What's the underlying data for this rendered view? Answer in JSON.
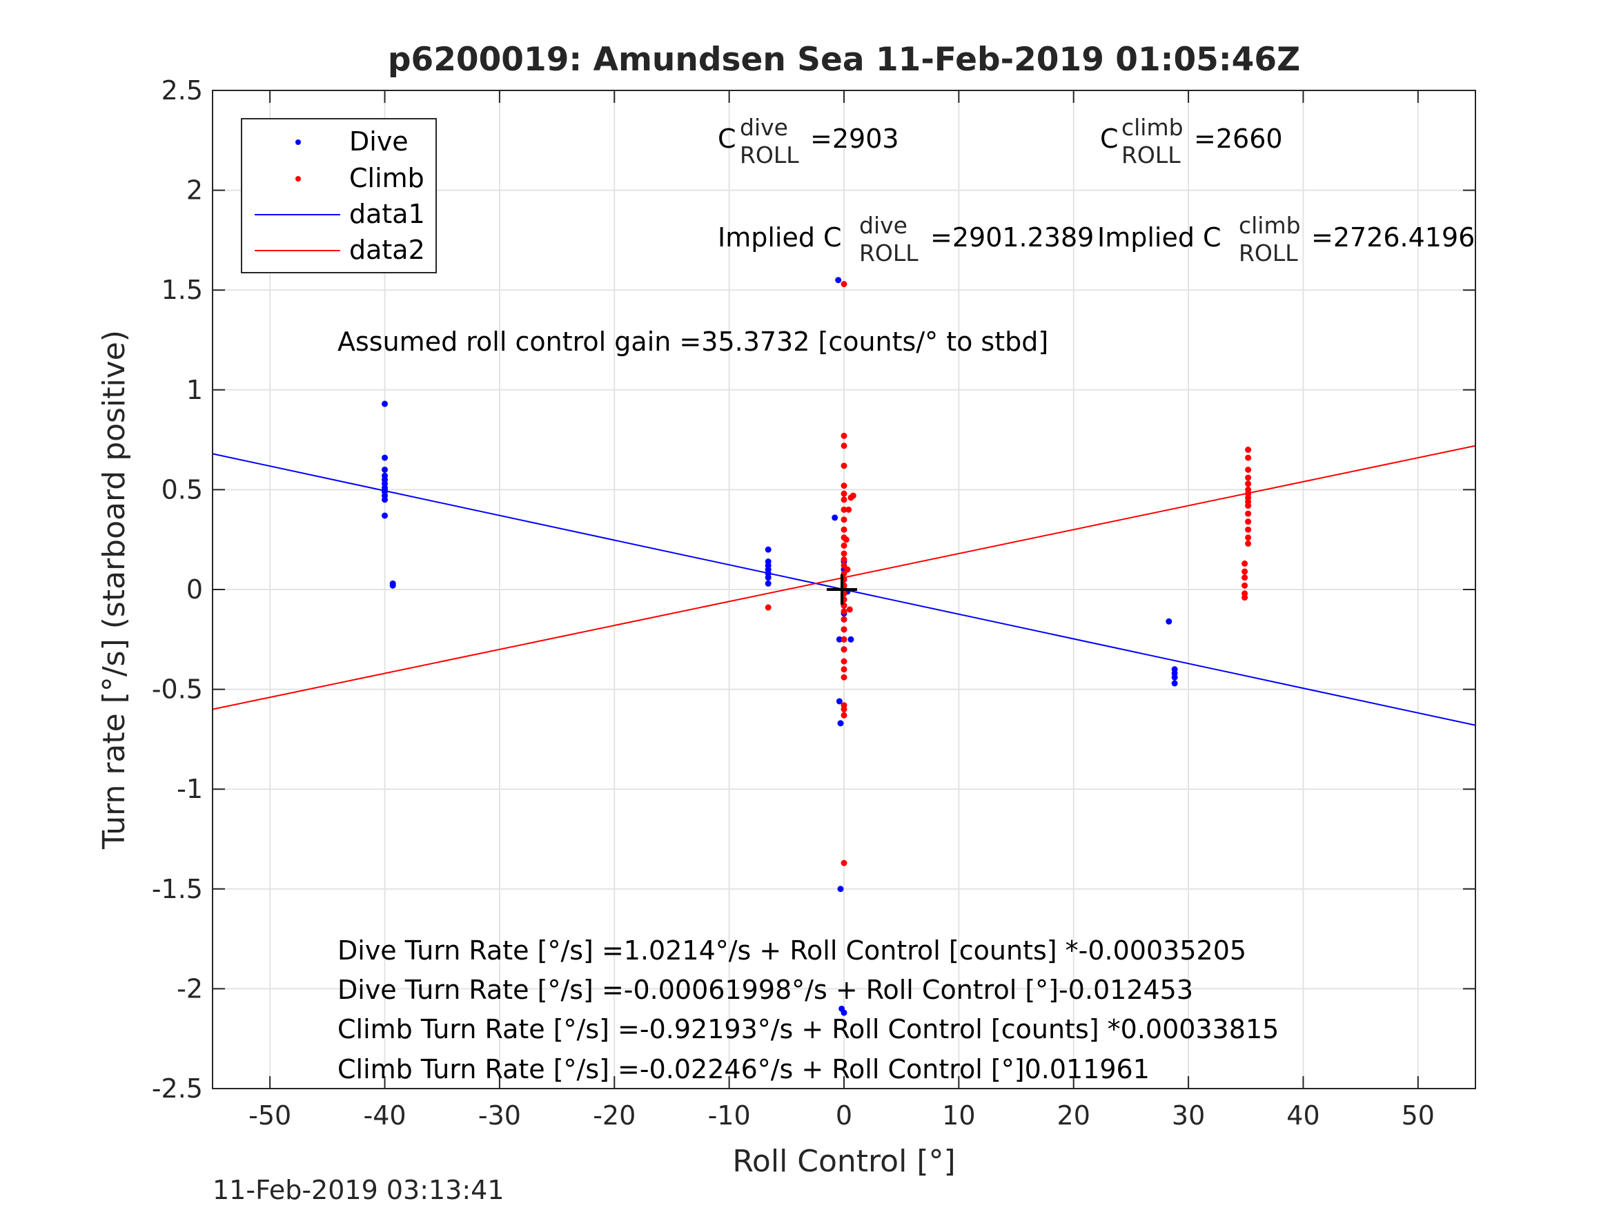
{
  "chart_data": {
    "type": "scatter",
    "title": "p6200019: Amundsen Sea 11-Feb-2019 01:05:46Z",
    "xlabel": "Roll Control [°]",
    "ylabel": "Turn rate [°/s] (starboard positive)",
    "xlim": [
      -55,
      55
    ],
    "ylim": [
      -2.5,
      2.5
    ],
    "xticks": [
      -50,
      -40,
      -30,
      -20,
      -10,
      0,
      10,
      20,
      30,
      40,
      50
    ],
    "yticks": [
      2.5,
      2,
      1.5,
      1,
      0.5,
      0,
      -0.5,
      -1,
      -1.5,
      -2,
      -2.5
    ],
    "grid": true,
    "legend_position": "top-left",
    "legend": [
      "Dive",
      "Climb",
      "data1",
      "data2"
    ],
    "colors": {
      "dive": "#0000ff",
      "climb": "#ff0000",
      "fit_dive": "#0000ff",
      "fit_climb": "#ff0000"
    },
    "series": [
      {
        "name": "Dive",
        "kind": "points",
        "x": [
          -40,
          -40,
          -40,
          -40,
          -40,
          -40,
          -40,
          -40,
          -40,
          -40,
          -40,
          -40,
          -40,
          -39.3,
          -39.3,
          -6.6,
          -6.6,
          -6.6,
          -6.6,
          -6.6,
          -6.6,
          -6.6,
          -0.8,
          -0.5,
          -0.4,
          -0.3,
          -0.3,
          -0.4,
          -0.2,
          0,
          0,
          0,
          0,
          0,
          0,
          0,
          0,
          0,
          0,
          0,
          0,
          0,
          0,
          0.3,
          0.6,
          28.3,
          28.8,
          28.8,
          28.8,
          28.8
        ],
        "y": [
          0.93,
          0.66,
          0.6,
          0.57,
          0.55,
          0.53,
          0.51,
          0.5,
          0.49,
          0.47,
          0.45,
          0.37,
          0.55,
          0.03,
          0.02,
          0.2,
          0.14,
          0.12,
          0.1,
          0.08,
          0.06,
          0.03,
          0.36,
          1.55,
          -0.56,
          -0.67,
          -1.5,
          -0.25,
          -2.1,
          0.14,
          0.1,
          0.05,
          0.02,
          0.0,
          -0.02,
          -0.05,
          -0.08,
          -0.12,
          -0.15,
          -0.2,
          -0.25,
          -0.3,
          -2.12,
          -0.01,
          -0.25,
          -0.16,
          -0.4,
          -0.42,
          -0.44,
          -0.47
        ]
      },
      {
        "name": "Climb",
        "kind": "points",
        "x": [
          -6.6,
          0,
          0,
          0,
          0,
          0,
          0,
          0,
          0,
          0,
          0,
          0,
          0,
          0,
          0,
          0,
          0,
          0,
          0,
          0,
          0,
          0,
          0,
          0,
          0,
          0,
          0,
          0,
          0,
          0,
          0,
          0,
          0,
          0,
          0.2,
          0.4,
          0.6,
          0.8,
          0.3,
          0.5,
          35.2,
          35.2,
          35.2,
          35.2,
          35.2,
          35.2,
          35.2,
          35.2,
          35.2,
          35.2,
          35.2,
          35.2,
          35.2,
          35.2,
          35.2,
          34.9,
          34.9,
          34.9,
          34.9,
          34.9,
          34.9
        ],
        "y": [
          -0.09,
          1.53,
          0.77,
          0.72,
          0.62,
          0.52,
          0.48,
          0.45,
          0.4,
          0.35,
          0.3,
          0.26,
          0.22,
          0.18,
          0.15,
          0.12,
          0.08,
          0.05,
          0.02,
          -0.02,
          -0.05,
          -0.08,
          -0.11,
          -0.15,
          -0.2,
          -0.25,
          -0.3,
          -0.36,
          -0.4,
          -0.44,
          -0.58,
          -0.6,
          -0.63,
          -1.37,
          0.25,
          0.4,
          0.46,
          0.47,
          0.1,
          -0.1,
          0.7,
          0.66,
          0.6,
          0.56,
          0.53,
          0.5,
          0.48,
          0.46,
          0.44,
          0.42,
          0.38,
          0.34,
          0.3,
          0.26,
          0.23,
          0.13,
          0.09,
          0.06,
          0.02,
          -0.02,
          -0.04
        ]
      },
      {
        "name": "data1",
        "kind": "line",
        "x": [
          -55,
          55
        ],
        "y": [
          0.68,
          -0.68
        ]
      },
      {
        "name": "data2",
        "kind": "line",
        "x": [
          -55,
          55
        ],
        "y": [
          -0.6,
          0.72
        ]
      }
    ],
    "annotations": {
      "c_dive_base": "C",
      "c_dive_sup": "dive",
      "c_dive_sub": "ROLL",
      "c_dive_value": "=2903",
      "c_climb_base": "C",
      "c_climb_sup": "climb",
      "c_climb_sub": "ROLL",
      "c_climb_value": "=2660",
      "implied_dive_base": "Implied C",
      "implied_dive_sup": "dive",
      "implied_dive_sub": "ROLL",
      "implied_dive_value": "=2901.2389",
      "implied_climb_base": "Implied C",
      "implied_climb_sup": "climb",
      "implied_climb_sub": "ROLL",
      "implied_climb_value": "=2726.4196",
      "gain": "Assumed roll control gain =35.3732 [counts/° to stbd]",
      "eq1": "Dive Turn Rate [°/s] =1.0214°/s + Roll Control [counts] *-0.00035205",
      "eq2": "Dive Turn Rate [°/s] =-0.00061998°/s + Roll Control [°]-0.012453",
      "eq3": "Climb Turn Rate [°/s] =-0.92193°/s + Roll Control [counts] *0.00033815",
      "eq4": "Climb Turn Rate [°/s] =-0.02246°/s + Roll Control [°]0.011961"
    },
    "footer_timestamp": "11-Feb-2019 03:13:41"
  }
}
